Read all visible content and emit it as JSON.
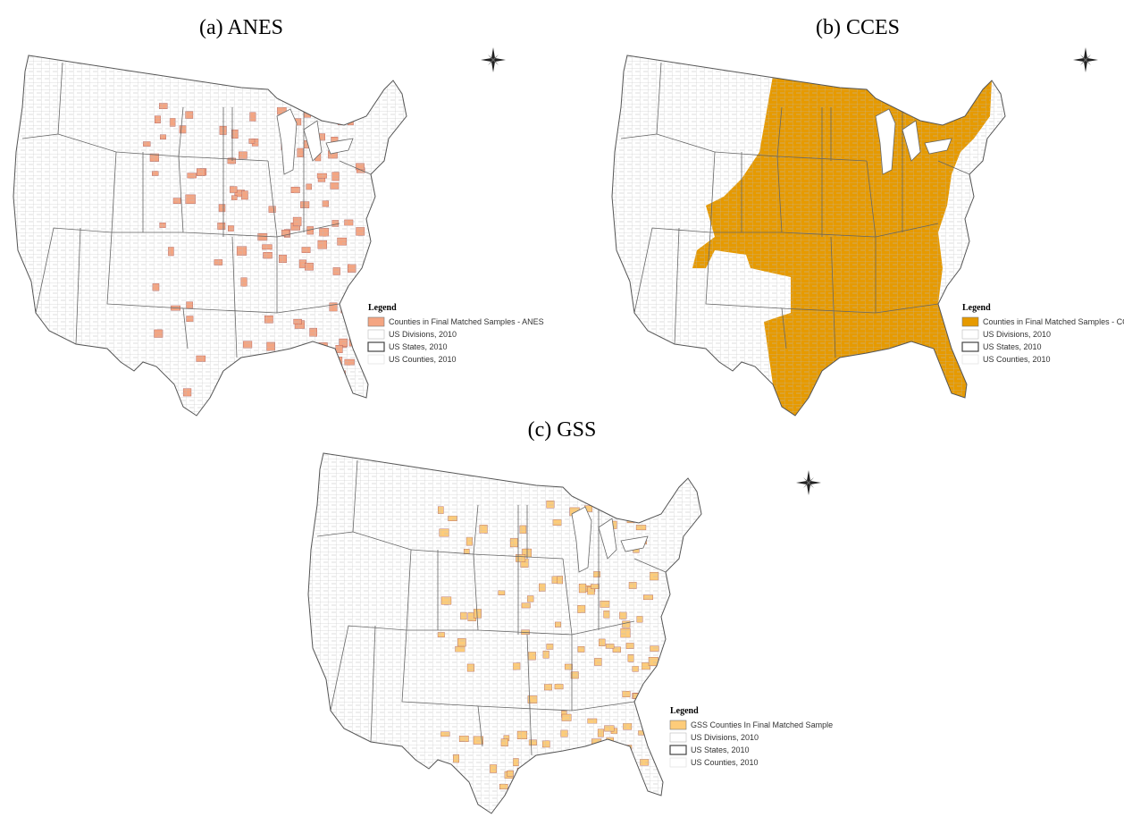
{
  "panels": [
    {
      "title": "(a) ANES",
      "legend": {
        "title": "Legend",
        "items": [
          "Counties in Final Matched Samples - ANES",
          "US Divisions, 2010",
          "US States, 2010",
          "US Counties, 2010"
        ]
      }
    },
    {
      "title": "(b) CCES",
      "legend": {
        "title": "Legend",
        "items": [
          "Counties in Final Matched Samples - CCES",
          "US Divisions, 2010",
          "US States, 2010",
          "US Counties, 2010"
        ]
      }
    },
    {
      "title": "(c) GSS",
      "legend": {
        "title": "Legend",
        "items": [
          "GSS Counties In Final Matched Sample",
          "US Divisions, 2010",
          "US States, 2010",
          "US Counties, 2010"
        ]
      }
    }
  ]
}
